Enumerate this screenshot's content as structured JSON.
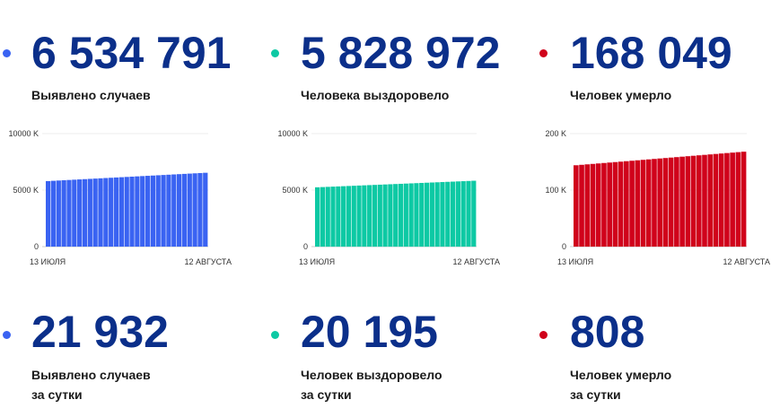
{
  "stats_total": [
    {
      "value": "6 534 791",
      "label": "Выявлено случаев",
      "color": "#3a63f2"
    },
    {
      "value": "5 828 972",
      "label": "Человека выздоровело",
      "color": "#0dc9a4"
    },
    {
      "value": "168 049",
      "label": "Человек умерло",
      "color": "#d0021b"
    }
  ],
  "stats_daily": [
    {
      "value": "21 932",
      "label1": "Выявлено случаев",
      "label2": "за сутки",
      "color": "#3a63f2"
    },
    {
      "value": "20 195",
      "label1": "Человек выздоровело",
      "label2": "за сутки",
      "color": "#0dc9a4"
    },
    {
      "value": "808",
      "label1": "Человек умерло",
      "label2": "за сутки",
      "color": "#d0021b"
    }
  ],
  "chart_data": [
    {
      "type": "bar",
      "color": "#3a63f2",
      "ytick_labels": [
        "0",
        "5000 K",
        "10000 K"
      ],
      "ytick_values": [
        0,
        5000,
        10000
      ],
      "ylim": [
        0,
        10000
      ],
      "x_start_label": "13 ИЮЛЯ",
      "x_end_label": "12 АВГУСТА",
      "count": 31,
      "start_value": 5800,
      "end_value": 6535
    },
    {
      "type": "bar",
      "color": "#0dc9a4",
      "ytick_labels": [
        "0",
        "5000 K",
        "10000 K"
      ],
      "ytick_values": [
        0,
        5000,
        10000
      ],
      "ylim": [
        0,
        10000
      ],
      "x_start_label": "13 ИЮЛЯ",
      "x_end_label": "12 АВГУСТА",
      "count": 31,
      "start_value": 5250,
      "end_value": 5829
    },
    {
      "type": "bar",
      "color": "#d0021b",
      "ytick_labels": [
        "0",
        "100 K",
        "200 K"
      ],
      "ytick_values": [
        0,
        100,
        200
      ],
      "ylim": [
        0,
        200
      ],
      "x_start_label": "13 ИЮЛЯ",
      "x_end_label": "12 АВГУСТА",
      "count": 31,
      "start_value": 144,
      "end_value": 168
    }
  ]
}
